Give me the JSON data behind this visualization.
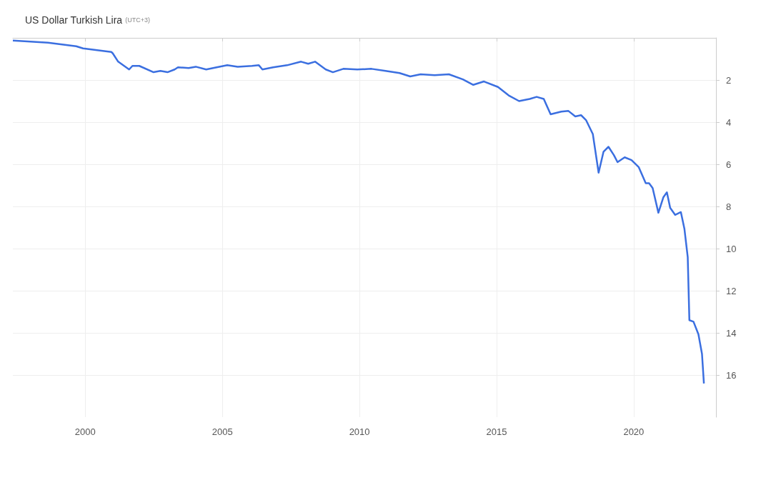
{
  "chart_data": {
    "type": "line",
    "title": "US Dollar Turkish Lira",
    "subtitle": "(UTC+3)",
    "x": [
      1997.36,
      1998.64,
      1999.67,
      1999.92,
      2000.95,
      2001.0,
      2001.2,
      2001.6,
      2001.72,
      2001.97,
      2002.49,
      2002.74,
      2003.0,
      2003.26,
      2003.38,
      2003.77,
      2004.03,
      2004.41,
      2004.79,
      2005.18,
      2005.56,
      2006.08,
      2006.33,
      2006.46,
      2006.85,
      2007.36,
      2007.87,
      2008.13,
      2008.38,
      2008.77,
      2009.03,
      2009.41,
      2009.92,
      2010.44,
      2010.95,
      2011.46,
      2011.85,
      2012.23,
      2012.74,
      2013.26,
      2013.77,
      2014.15,
      2014.54,
      2015.05,
      2015.44,
      2015.82,
      2016.21,
      2016.46,
      2016.72,
      2016.97,
      2017.36,
      2017.62,
      2017.87,
      2018.08,
      2018.26,
      2018.51,
      2018.72,
      2018.9,
      2019.08,
      2019.28,
      2019.41,
      2019.67,
      2019.92,
      2020.18,
      2020.44,
      2020.56,
      2020.69,
      2020.9,
      2021.08,
      2021.21,
      2021.33,
      2021.51,
      2021.72,
      2021.85,
      2021.97,
      2022.03,
      2022.18,
      2022.36,
      2022.49,
      2022.56
    ],
    "series": [
      {
        "color": "#3b6fe0",
        "values": [
          0.13,
          0.23,
          0.4,
          0.5,
          0.67,
          0.73,
          1.13,
          1.5,
          1.33,
          1.33,
          1.63,
          1.57,
          1.63,
          1.5,
          1.4,
          1.43,
          1.37,
          1.5,
          1.4,
          1.3,
          1.37,
          1.33,
          1.3,
          1.5,
          1.4,
          1.3,
          1.13,
          1.23,
          1.13,
          1.5,
          1.63,
          1.47,
          1.5,
          1.47,
          1.57,
          1.67,
          1.83,
          1.73,
          1.77,
          1.73,
          1.97,
          2.23,
          2.07,
          2.33,
          2.73,
          3.0,
          2.9,
          2.8,
          2.9,
          3.63,
          3.5,
          3.47,
          3.73,
          3.67,
          3.9,
          4.57,
          6.4,
          5.4,
          5.17,
          5.57,
          5.9,
          5.67,
          5.8,
          6.13,
          6.9,
          6.9,
          7.13,
          8.3,
          7.57,
          7.33,
          8.07,
          8.4,
          8.27,
          9.07,
          10.4,
          13.4,
          13.47,
          14.07,
          15.0,
          16.4
        ]
      }
    ],
    "xlim": [
      1997.36,
      2023
    ],
    "xticks": [
      2000,
      2005,
      2010,
      2015,
      2020
    ],
    "ylim": [
      18,
      0
    ],
    "yticks": [
      2,
      4,
      6,
      8,
      10,
      12,
      14,
      16
    ],
    "grid": true,
    "marker": "none",
    "line_style": "solid"
  }
}
